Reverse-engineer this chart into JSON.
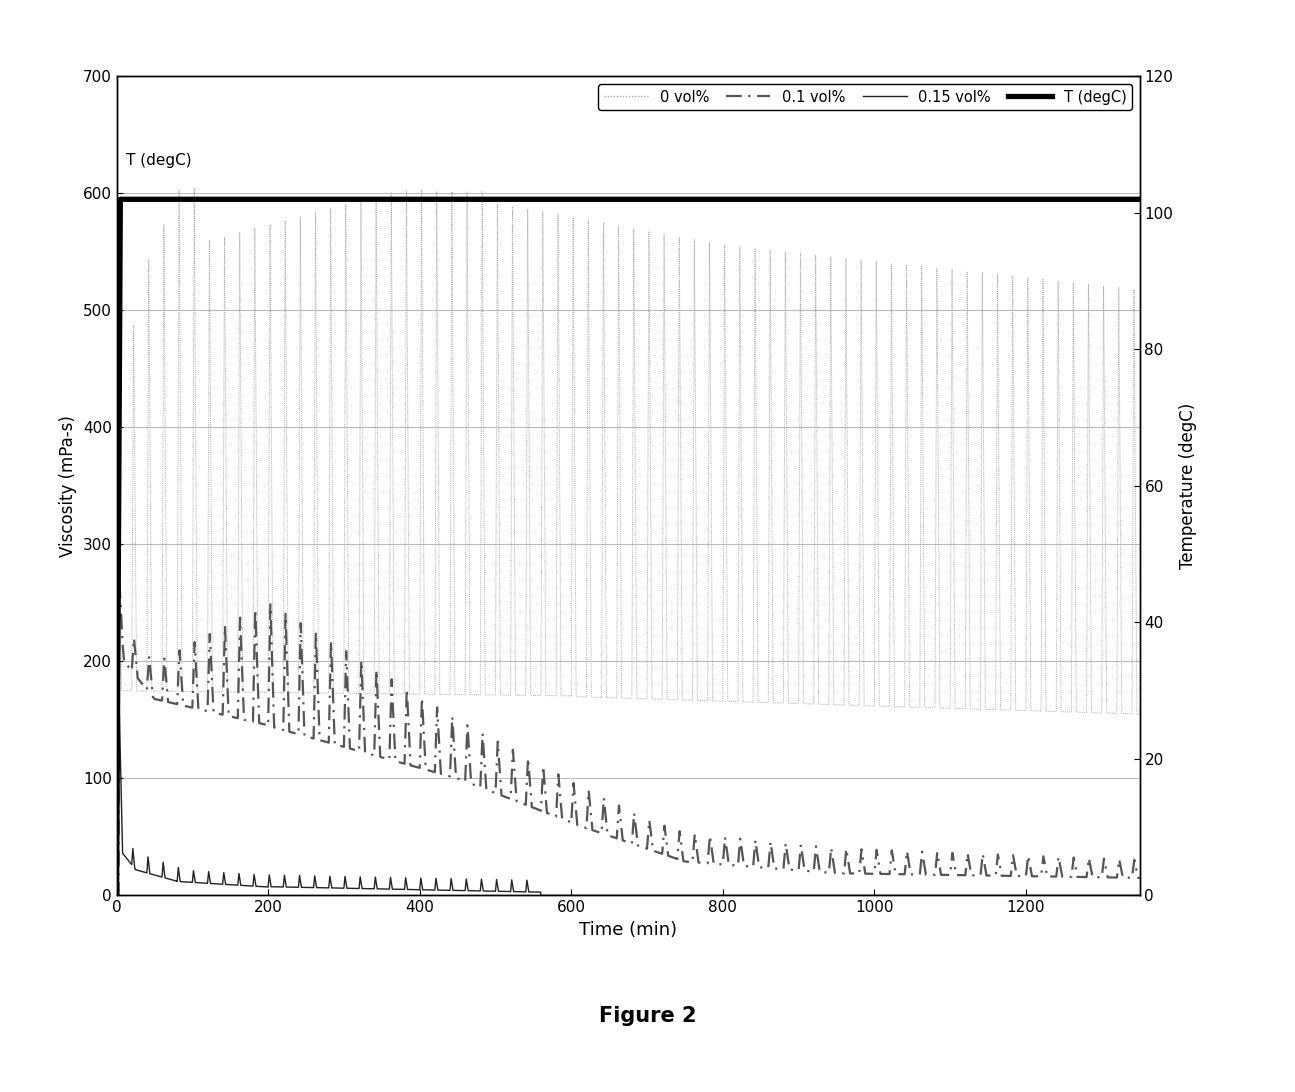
{
  "title": "Figure 2",
  "xlabel": "Time (min)",
  "ylabel_left": "Viscosity (mPa-s)",
  "ylabel_right": "Temperature (degC)",
  "xlim": [
    0,
    1350
  ],
  "ylim_left": [
    0,
    700
  ],
  "ylim_right": [
    0,
    120
  ],
  "xticks": [
    0,
    200,
    400,
    600,
    800,
    1000,
    1200
  ],
  "yticks_left": [
    0,
    100,
    200,
    300,
    400,
    500,
    600,
    700
  ],
  "yticks_right": [
    0,
    20,
    40,
    60,
    80,
    100,
    120
  ],
  "legend_labels": [
    "0 vol%",
    "0.1 vol%",
    "0.15 vol%",
    "T (degC)"
  ],
  "temp_color": "#000000",
  "vol0_color": "#aaaaaa",
  "vol01_color": "#555555",
  "vol015_color": "#222222",
  "annotation_text": "T (degC)",
  "figure_caption": "Figure 2",
  "background_color": "#ffffff",
  "grid_color": "#bbbbbb"
}
